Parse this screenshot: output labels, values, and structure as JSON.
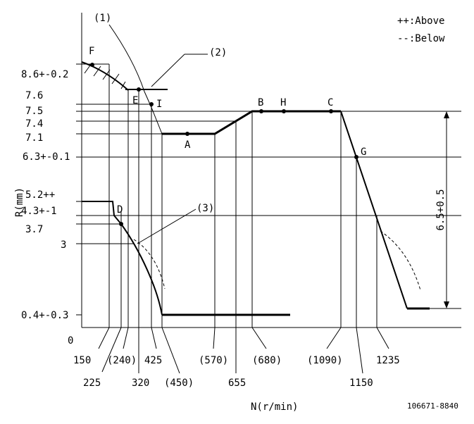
{
  "legend": {
    "above": "++:Above",
    "below": "--:Below"
  },
  "callouts": {
    "c1": "(1)",
    "c2": "(2)",
    "c3": "(3)"
  },
  "axes": {
    "y_label": "R(mm)",
    "x_label": "N(r/min)",
    "origin": "0"
  },
  "y_ticks": [
    "8.6+-0.2",
    "7.6",
    "7.5",
    "7.4",
    "7.1",
    "6.3+-0.1",
    "5.2++",
    "4.3+-1",
    "3.7",
    "3",
    "0.4+-0.3"
  ],
  "x_ticks_upper": [
    "150",
    "(240)",
    "425",
    "(570)",
    "(680)",
    "(1090)",
    "1235"
  ],
  "x_ticks_lower": [
    "225",
    "320",
    "(450)",
    "655",
    "1150"
  ],
  "points": {
    "F": "F",
    "E": "E",
    "I": "I",
    "B": "B",
    "H": "H",
    "C": "C",
    "A": "A",
    "G": "G",
    "D": "D"
  },
  "dimension": "6.5+0.5",
  "drawing_code": "106671-8840"
}
